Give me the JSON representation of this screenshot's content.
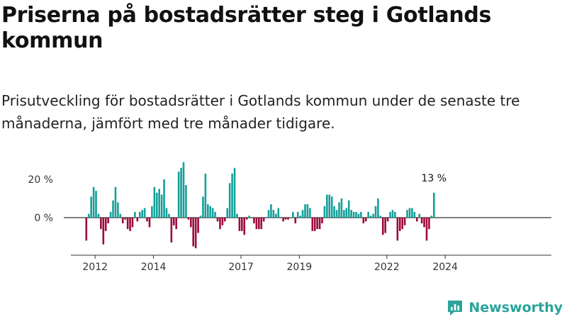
{
  "title": "Priserna på bostadsrätter steg i Gotlands kommun",
  "subtitle": "Prisutveckling för bostadsrätter i Gotlands kommun under de senaste tre månaderna, jämfört med tre månader tidigare.",
  "brand": {
    "name": "Newsworthy",
    "icon": "newsworthy-logo-icon"
  },
  "colors": {
    "positive": "#16a09a",
    "negative": "#9e0a3c",
    "axis": "#333333"
  },
  "chart_data": {
    "type": "bar",
    "x_start": "2011-09",
    "x_end": "2024-05",
    "ylim": [
      -18,
      30
    ],
    "yticks": [
      {
        "value": 20,
        "label": "20 %"
      },
      {
        "value": 0,
        "label": "0 %"
      }
    ],
    "xticks": [
      "2012",
      "2014",
      "2017",
      "2019",
      "2022",
      "2024"
    ],
    "last_value_label": "13 %",
    "values": [
      -12,
      2,
      11,
      16,
      14,
      2,
      -6,
      -14,
      -7,
      -3,
      3,
      9,
      16,
      8,
      2,
      -3,
      -1,
      -6,
      -7,
      -5,
      3,
      -2,
      3,
      4,
      5,
      -2,
      -5,
      6,
      16,
      13,
      15,
      12,
      20,
      5,
      2,
      -13,
      -4,
      -6,
      24,
      26,
      29,
      17,
      -1,
      -5,
      -15,
      -16,
      -8,
      1,
      11,
      23,
      7,
      6,
      5,
      3,
      -2,
      -6,
      -4,
      -2,
      5,
      18,
      23,
      26,
      2,
      -7,
      -7,
      -9,
      -1,
      1,
      0,
      -3,
      -6,
      -6,
      -6,
      -2,
      0,
      4,
      7,
      4,
      2,
      5,
      0,
      -2,
      -1,
      -1,
      0,
      3,
      -3,
      3,
      1,
      4,
      7,
      7,
      5,
      -7,
      -7,
      -6,
      -6,
      -3,
      6,
      12,
      12,
      11,
      6,
      4,
      8,
      10,
      4,
      5,
      9,
      4,
      3,
      3,
      2,
      3,
      -3,
      -2,
      3,
      1,
      2,
      6,
      10,
      1,
      -9,
      -8,
      -2,
      3,
      4,
      3,
      -12,
      -7,
      -6,
      -4,
      4,
      5,
      5,
      3,
      -2,
      2,
      -3,
      -5,
      -12,
      -6,
      1,
      13
    ]
  }
}
